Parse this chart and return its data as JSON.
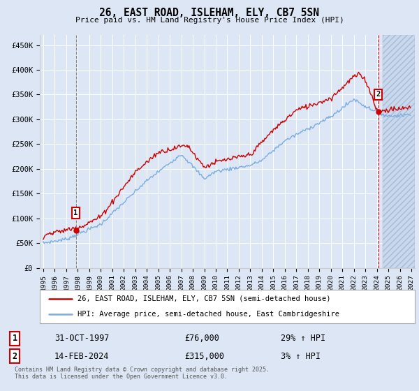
{
  "title": "26, EAST ROAD, ISLEHAM, ELY, CB7 5SN",
  "subtitle": "Price paid vs. HM Land Registry's House Price Index (HPI)",
  "ylim": [
    0,
    470000
  ],
  "yticks": [
    0,
    50000,
    100000,
    150000,
    200000,
    250000,
    300000,
    350000,
    400000,
    450000
  ],
  "ytick_labels": [
    "£0",
    "£50K",
    "£100K",
    "£150K",
    "£200K",
    "£250K",
    "£300K",
    "£350K",
    "£400K",
    "£450K"
  ],
  "xlim_start": 1994.7,
  "xlim_end": 2027.3,
  "bg_color": "#dce6f5",
  "red_color": "#cc0000",
  "blue_color": "#7aade0",
  "sale1_x": 1997.83,
  "sale1_y": 76000,
  "sale1_label": "1",
  "sale2_x": 2024.12,
  "sale2_y": 315000,
  "sale2_label": "2",
  "vline1_style": "dashed_gray",
  "vline2_style": "dashed_red",
  "legend_line1": "26, EAST ROAD, ISLEHAM, ELY, CB7 5SN (semi-detached house)",
  "legend_line2": "HPI: Average price, semi-detached house, East Cambridgeshire",
  "table_row1_num": "1",
  "table_row1_date": "31-OCT-1997",
  "table_row1_price": "£76,000",
  "table_row1_hpi": "29% ↑ HPI",
  "table_row2_num": "2",
  "table_row2_date": "14-FEB-2024",
  "table_row2_price": "£315,000",
  "table_row2_hpi": "3% ↑ HPI",
  "footnote": "Contains HM Land Registry data © Crown copyright and database right 2025.\nThis data is licensed under the Open Government Licence v3.0."
}
